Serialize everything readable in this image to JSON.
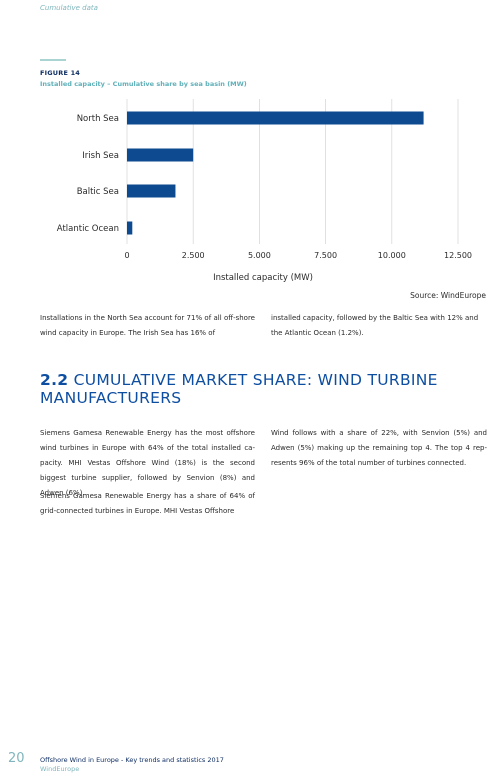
{
  "running_head": "Cumulative data",
  "figure": {
    "label": "FIGURE 14",
    "title": "Installed capacity – Cumulative share by sea basin (MW)",
    "source": "Source: WindEurope"
  },
  "chart_data": {
    "type": "bar",
    "orientation": "horizontal",
    "categories": [
      "North Sea",
      "Irish Sea",
      "Baltic Sea",
      "Atlantic Ocean"
    ],
    "values": [
      11200,
      2500,
      1830,
      200
    ],
    "xlabel": "Installed capacity (MW)",
    "xlim": [
      0,
      12500
    ],
    "xticks": [
      0,
      2500,
      5000,
      7500,
      10000,
      12500
    ],
    "xtick_labels": [
      "0",
      "2.500",
      "5.000",
      "7.500",
      "10.000",
      "12.500"
    ],
    "grid": "vertical",
    "bar_color": "#0e4a8f",
    "grid_color": "#d9d9d9"
  },
  "paragraphs": {
    "p1_left": "Installations in the North Sea account for 71% of all off-shore wind capacity in Europe. The Irish Sea has 16% of",
    "p1_right": "installed capacity, followed by the Baltic Sea with 12% and the Atlantic Ocean (1.2%).",
    "heading_num": "2.2",
    "heading_text": "CUMULATIVE MARKET SHARE: WIND TURBINE MANUFACTURERS",
    "p2_left": "Siemens Gamesa Renewable Energy has the most offshore wind turbines in Europe with 64% of the total installed ca-pacity. MHI Vestas Offshore Wind (18%) is the second biggest turbine supplier, followed by Senvion (8%) and Adwen (6%).",
    "p3_left": "Siemens Gamesa Renewable Energy has a share of 64% of grid-connected turbines in Europe. MHI Vestas Offshore",
    "p2_right": "Wind follows with a share of 22%, with Senvion (5%) and Adwen (5%) making up the remaining top 4. The top 4 rep-resents 96% of the total number of turbines connected."
  },
  "footer": {
    "page_number": "20",
    "title": "Offshore Wind in Europe - Key trends and statistics 2017",
    "org": "WindEurope"
  },
  "colors": {
    "heading": "#0e4ea1",
    "accent_teal": "#5fb0b9",
    "navy": "#0e2d63"
  }
}
